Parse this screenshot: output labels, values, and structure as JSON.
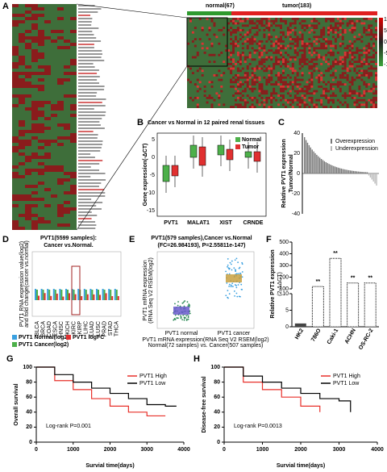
{
  "panels": {
    "A": {
      "label": "A",
      "normal": "normal(67)",
      "tumor": "tumor(183)",
      "colorbar_ticks": [
        "10",
        "5",
        "0",
        "-5",
        "-10"
      ]
    },
    "B": {
      "label": "B",
      "title": "Cancer vs Normal in 12 paired renal tissues",
      "ylabel": "Gene expression(-ΔCT)",
      "yticks": [
        "5",
        "0",
        "-5",
        "-10",
        "-15"
      ],
      "categories": [
        "PVT1",
        "MALAT1",
        "XIST",
        "CRNDE"
      ],
      "legend": [
        "Normal",
        "Tumor"
      ]
    },
    "C": {
      "label": "C",
      "ylabel_1": "Relative PVT1 expression",
      "ylabel_2": "Tumor/Normal",
      "yticks": [
        "40",
        "20",
        "0",
        "-20",
        "-40"
      ],
      "legend": [
        "Overexpression",
        "Underexpression"
      ]
    },
    "D": {
      "label": "D",
      "title_1": "PVT1(5599 samples):",
      "title_2": "Cancer vs.Normal.",
      "ylabel_1": "PVT1 RNA expression value(log2)",
      "ylabel_2": "and fold change(cancer vs.normal)",
      "categories": [
        "BLCA",
        "BRCA",
        "COAD",
        "ESCA",
        "HNSC",
        "KICH",
        "KIRC",
        "KIRP",
        "LIHC",
        "LUAD",
        "LUSC",
        "PRAD",
        "STAD",
        "THCA"
      ],
      "legend": [
        "PVT1 Normal(log2)",
        "PVT1 logFC",
        "PVT1 Cancer(log2)"
      ]
    },
    "E": {
      "label": "E",
      "title_1": "PVT1(579 samples),Cancer vs.Normal",
      "title_2": "(FC=26.984193), P=2.55811e-147)",
      "ylabel_1": "PVT1 mRNA expression",
      "ylabel_2": "(RNA Seq V2 RSEM(log2)",
      "categories": [
        "PVT1 normal",
        "PVT1 cancer"
      ],
      "xlabel_1": "PVT1 mRNA expression(RNA Seq V2 RSEM(log2)",
      "xlabel_2": "Normal(72 samples) vs. Cancer(507 samples)"
    },
    "F": {
      "label": "F",
      "type": "bar",
      "ylabel_1": "Relative PVT1 expression",
      "ylabel_2": "(2-ΔΔCT)",
      "categories": [
        "HK2",
        "786O",
        "Caki-1",
        "ACHN",
        "OS-RC-2"
      ],
      "values": [
        1,
        120,
        360,
        150,
        150
      ],
      "significance": [
        "**",
        "**",
        "**",
        "**"
      ],
      "yticks_low": [
        0,
        5,
        10
      ],
      "ylim_low": [
        0,
        10
      ],
      "yticks_high": [
        100,
        200,
        300,
        400,
        500
      ],
      "ylim_high": [
        100,
        500
      ]
    },
    "G": {
      "label": "G",
      "type": "line",
      "ylabel": "Overall  survival",
      "xlabel": "Survial time(days)",
      "pvalue": "Log-rank P=0.001",
      "xlim": [
        0,
        4000
      ],
      "ylim": [
        0,
        100
      ],
      "xticks": [
        0,
        1000,
        2000,
        3000,
        4000
      ],
      "yticks": [
        0,
        20,
        40,
        60,
        80,
        100
      ],
      "series": [
        {
          "name": "PVT1 High",
          "color": "#e8302a",
          "x": [
            0,
            500,
            1000,
            1500,
            2000,
            2500,
            3000,
            3500
          ],
          "values": [
            100,
            82,
            70,
            58,
            48,
            40,
            35,
            35
          ]
        },
        {
          "name": "PVT1 Low",
          "color": "#000000",
          "x": [
            0,
            500,
            1000,
            1500,
            2000,
            2500,
            3000,
            3500,
            3800
          ],
          "values": [
            100,
            90,
            80,
            72,
            65,
            58,
            50,
            48,
            48
          ]
        }
      ]
    },
    "H": {
      "label": "H",
      "type": "line",
      "ylabel": "Disease-free survival",
      "xlabel": "Survial time(days)",
      "pvalue": "Log-rank P=0.0013",
      "xlim": [
        0,
        4000
      ],
      "ylim": [
        0,
        100
      ],
      "xticks": [
        0,
        1000,
        2000,
        3000,
        4000
      ],
      "yticks": [
        0,
        20,
        40,
        60,
        80,
        100
      ],
      "series": [
        {
          "name": "PVT1 High",
          "color": "#e8302a",
          "x": [
            0,
            500,
            1000,
            1500,
            2000,
            2500
          ],
          "values": [
            100,
            80,
            70,
            60,
            48,
            40
          ]
        },
        {
          "name": "PVT1 Low",
          "color": "#000000",
          "x": [
            0,
            500,
            1000,
            1500,
            2000,
            2500,
            3000,
            3300
          ],
          "values": [
            100,
            88,
            80,
            72,
            65,
            58,
            55,
            40
          ]
        }
      ]
    }
  }
}
